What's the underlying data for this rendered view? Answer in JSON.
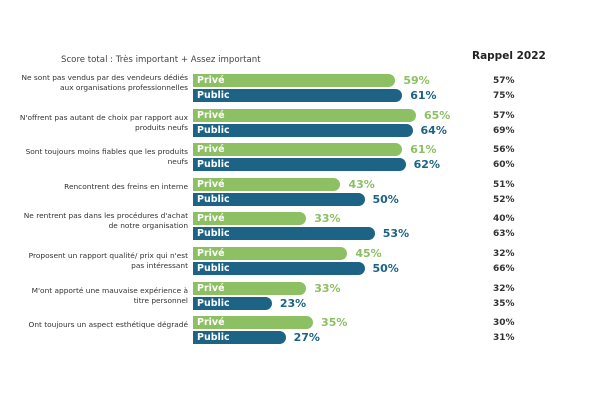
{
  "chart_data": {
    "type": "bar",
    "orientation": "horizontal",
    "subtitle": "Score total : Très important + Assez important",
    "comparison_header": "Rappel 2022",
    "series_names": [
      "Privé",
      "Public"
    ],
    "colors": {
      "prive": "#8cc063",
      "public": "#1c6385"
    },
    "unit": "%",
    "categories": [
      {
        "label": "Ne sont pas vendus par des vendeurs dédiés aux organisations professionnelles",
        "prive": 59,
        "public": 61,
        "rappel_prive": 57,
        "rappel_public": 75
      },
      {
        "label": "N'offrent pas autant de choix par rapport aux produits neufs",
        "prive": 65,
        "public": 64,
        "rappel_prive": 57,
        "rappel_public": 69
      },
      {
        "label": "Sont toujours moins fiables que les produits neufs",
        "prive": 61,
        "public": 62,
        "rappel_prive": 56,
        "rappel_public": 60
      },
      {
        "label": "Rencontrent des freins en interne",
        "prive": 43,
        "public": 50,
        "rappel_prive": 51,
        "rappel_public": 52
      },
      {
        "label": "Ne rentrent pas dans les procédures d'achat de notre organisation",
        "prive": 33,
        "public": 53,
        "rappel_prive": 40,
        "rappel_public": 63
      },
      {
        "label": "Proposent un rapport qualité/ prix qui n'est pas intéressant",
        "prive": 45,
        "public": 50,
        "rappel_prive": 32,
        "rappel_public": 66
      },
      {
        "label": "M'ont apporté une mauvaise expérience à titre personnel",
        "prive": 33,
        "public": 23,
        "rappel_prive": 32,
        "rappel_public": 35
      },
      {
        "label": "Ont toujours un aspect esthétique dégradé",
        "prive": 35,
        "public": 27,
        "rappel_prive": 30,
        "rappel_public": 31
      }
    ],
    "xlim": [
      0,
      100
    ],
    "grid": false,
    "legend": "inline"
  }
}
